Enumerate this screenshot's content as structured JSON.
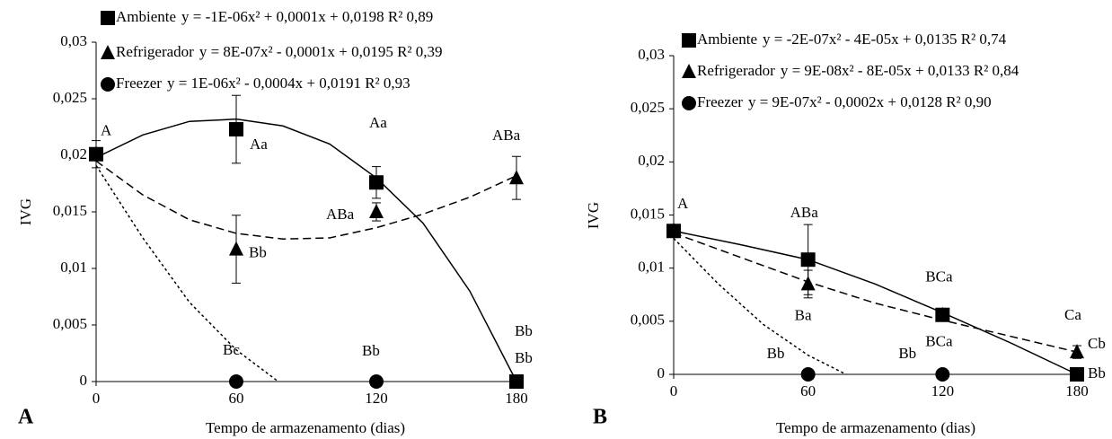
{
  "chart_data": [
    {
      "type": "scatter",
      "panel_label": "A",
      "y_label": "IVG",
      "x_label": "Tempo de armazenamento (dias)",
      "x": [
        0,
        60,
        120,
        180
      ],
      "xlim": [
        0,
        180
      ],
      "xticks": [
        0,
        60,
        120,
        180
      ],
      "ylim": [
        0,
        0.03
      ],
      "yticks": [
        0,
        {
          "value": 0.005,
          "label": "0,005"
        },
        {
          "value": 0.01,
          "label": "0,01"
        },
        {
          "value": 0.015,
          "label": "0,015"
        },
        {
          "value": 0.02,
          "label": "0,02"
        },
        {
          "value": 0.025,
          "label": "0,025"
        },
        {
          "value": 0.03,
          "label": "0,03"
        }
      ],
      "series": [
        {
          "name": "Ambiente",
          "equation": "y = -1E-06x² + 0,0001x + 0,0198  R² 0,89",
          "marker": "square",
          "color": "#000000",
          "dash": "solid",
          "values": [
            0.0201,
            0.0223,
            0.0176,
            0
          ],
          "errors": [
            0.0012,
            0.003,
            0.0014,
            null
          ],
          "point_labels": [
            "A",
            "Aa",
            "Aa",
            "Bb"
          ],
          "fit": {
            "x": [
              0,
              20,
              40,
              60,
              80,
              100,
              120,
              140,
              160,
              180
            ],
            "values": [
              0.0198,
              0.0218,
              0.023,
              0.0232,
              0.0226,
              0.021,
              0.018,
              0.014,
              0.008,
              0
            ]
          }
        },
        {
          "name": "Refrigerador",
          "equation": "y = 8E-07x² - 0,0001x + 0,0195 R² 0,39",
          "marker": "triangle",
          "color": "#000000",
          "dash": "dashed",
          "values": [
            0.0201,
            0.0117,
            0.015,
            0.018
          ],
          "errors": [
            null,
            0.003,
            0.0008,
            0.0019
          ],
          "point_labels": [
            null,
            "Bb",
            "ABa",
            "ABa"
          ],
          "fit": {
            "x": [
              0,
              20,
              40,
              60,
              80,
              100,
              120,
              140,
              160,
              180
            ],
            "values": [
              0.0195,
              0.0165,
              0.0143,
              0.0131,
              0.0126,
              0.0127,
              0.0136,
              0.0148,
              0.0163,
              0.0182
            ]
          }
        },
        {
          "name": "Freezer",
          "equation": "y = 1E-06x² - 0,0004x + 0,0191  R² 0,93",
          "marker": "circle",
          "color": "#000000",
          "dash": "dotted",
          "values": [
            0.0201,
            0,
            0,
            0
          ],
          "errors": [
            null,
            null,
            null,
            null
          ],
          "point_labels": [
            null,
            "Bc",
            "Bb",
            "Bb"
          ],
          "fit": {
            "x": [
              0,
              20,
              40,
              60,
              78
            ],
            "values": [
              0.0191,
              0.0127,
              0.007,
              0.0028,
              0
            ]
          }
        }
      ]
    },
    {
      "type": "scatter",
      "panel_label": "B",
      "y_label": "IVG",
      "x_label": "Tempo de armazenamento (dias)",
      "x": [
        0,
        60,
        120,
        180
      ],
      "xlim": [
        0,
        180
      ],
      "xticks": [
        0,
        60,
        120,
        180
      ],
      "ylim": [
        0,
        0.03
      ],
      "yticks": [
        0,
        {
          "value": 0.005,
          "label": "0,005"
        },
        {
          "value": 0.01,
          "label": "0,01"
        },
        {
          "value": 0.015,
          "label": "0,015"
        },
        {
          "value": 0.02,
          "label": "0,02"
        },
        {
          "value": 0.025,
          "label": "0,025"
        },
        {
          "value": 0.03,
          "label": "0,03"
        }
      ],
      "series": [
        {
          "name": "Ambiente",
          "equation": "y = -2E-07x² - 4E-05x + 0,0135  R² 0,74",
          "marker": "square",
          "color": "#000000",
          "dash": "solid",
          "values": [
            0.0135,
            0.0108,
            0.0056,
            0
          ],
          "errors": [
            0.0006,
            0.0033,
            null,
            null
          ],
          "point_labels": [
            "A",
            "ABa",
            "BCa",
            "Bb"
          ],
          "fit": {
            "x": [
              0,
              30,
              60,
              90,
              120,
              150,
              180
            ],
            "values": [
              0.0135,
              0.0122,
              0.0108,
              0.0085,
              0.0058,
              0.003,
              0
            ]
          }
        },
        {
          "name": "Refrigerador",
          "equation": "y = 9E-08x² - 8E-05x + 0,0133 R² 0,84",
          "marker": "triangle",
          "color": "#000000",
          "dash": "dashed",
          "values": [
            0.0135,
            0.0085,
            0.0056,
            0.0021
          ],
          "errors": [
            null,
            0.0013,
            null,
            0.0006
          ],
          "point_labels": [
            null,
            "Ba",
            "BCa",
            "Ca"
          ],
          "fit": {
            "x": [
              0,
              30,
              60,
              90,
              120,
              150,
              180
            ],
            "values": [
              0.0133,
              0.011,
              0.0087,
              0.0067,
              0.0051,
              0.0036,
              0.0021
            ]
          }
        },
        {
          "name": "Freezer",
          "equation": "y = 9E-07x² - 0,0002x + 0,0128  R² 0,90",
          "marker": "circle",
          "color": "#000000",
          "dash": "dotted",
          "values": [
            0.0135,
            0,
            0,
            0
          ],
          "errors": [
            null,
            null,
            null,
            null
          ],
          "point_labels": [
            null,
            "Bb",
            "Bb",
            "Cb"
          ],
          "fit": {
            "x": [
              0,
              20,
              40,
              60,
              77
            ],
            "values": [
              0.0128,
              0.0085,
              0.0047,
              0.0018,
              0
            ]
          }
        }
      ]
    }
  ]
}
